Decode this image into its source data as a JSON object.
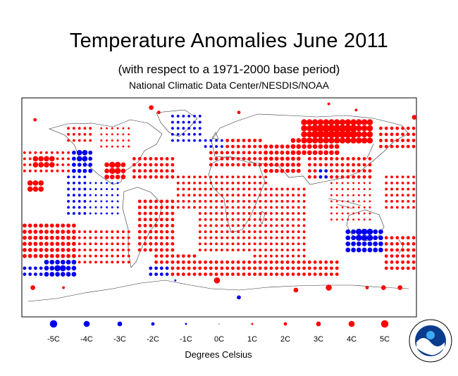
{
  "chart_data": {
    "type": "scatter",
    "title": "Temperature Anomalies June 2011",
    "subtitle": "(with respect to a 1971-2000 base period)",
    "source": "National Climatic Data Center/NESDIS/NOAA",
    "xlabel": "Degrees Celsius",
    "grid_step_degrees": 5,
    "value_range": [
      -5,
      5
    ],
    "positive_color": "#ff0000",
    "negative_color": "#0000ee",
    "legend": {
      "values": [
        -5,
        -4,
        -3,
        -2,
        -1,
        0,
        1,
        2,
        3,
        4,
        5
      ],
      "labels": [
        "-5C",
        "-4C",
        "-3C",
        "-2C",
        "-1C",
        "0C",
        "1C",
        "2C",
        "3C",
        "4C",
        "5C"
      ]
    },
    "anomaly_regions": [
      {
        "lon": [
          -180,
          -135
        ],
        "lat": [
          30,
          50
        ],
        "value": 1.5
      },
      {
        "lon": [
          -180,
          -130
        ],
        "lat": [
          -40,
          -10
        ],
        "value": 2.5
      },
      {
        "lon": [
          -175,
          -160
        ],
        "lat": [
          15,
          25
        ],
        "value": 3.5
      },
      {
        "lon": [
          -170,
          -150
        ],
        "lat": [
          35,
          45
        ],
        "value": 3.5
      },
      {
        "lon": [
          -180,
          -150
        ],
        "lat": [
          -55,
          -45
        ],
        "value": -2
      },
      {
        "lon": [
          -160,
          -130
        ],
        "lat": [
          -55,
          -42
        ],
        "value": -3
      },
      {
        "lon": [
          -152,
          -142
        ],
        "lat": [
          -52,
          -45
        ],
        "value": -4
      },
      {
        "lon": [
          -130,
          -80
        ],
        "lat": [
          -45,
          -15
        ],
        "value": 1.5
      },
      {
        "lon": [
          -140,
          -120
        ],
        "lat": [
          -5,
          30
        ],
        "value": -1.5
      },
      {
        "lon": [
          -135,
          -115
        ],
        "lat": [
          30,
          50
        ],
        "value": -2.5
      },
      {
        "lon": [
          -128,
          -122
        ],
        "lat": [
          38,
          46
        ],
        "value": -3.5
      },
      {
        "lon": [
          -120,
          -90
        ],
        "lat": [
          -5,
          25
        ],
        "value": -1
      },
      {
        "lon": [
          -140,
          -115
        ],
        "lat": [
          55,
          70
        ],
        "value": 1.5
      },
      {
        "lon": [
          -110,
          -80
        ],
        "lat": [
          48,
          70
        ],
        "value": 1
      },
      {
        "lon": [
          -105,
          -85
        ],
        "lat": [
          25,
          40
        ],
        "value": 3
      },
      {
        "lon": [
          -100,
          -90
        ],
        "lat": [
          28,
          36
        ],
        "value": 4
      },
      {
        "lon": [
          -80,
          -40
        ],
        "lat": [
          25,
          45
        ],
        "value": 2
      },
      {
        "lon": [
          -75,
          -40
        ],
        "lat": [
          -35,
          10
        ],
        "value": 2
      },
      {
        "lon": [
          -60,
          -20
        ],
        "lat": [
          -55,
          -35
        ],
        "value": 2
      },
      {
        "lon": [
          -65,
          -45
        ],
        "lat": [
          -55,
          -45
        ],
        "value": -2
      },
      {
        "lon": [
          -40,
          0
        ],
        "lat": [
          0,
          30
        ],
        "value": 1.5
      },
      {
        "lon": [
          -45,
          -15
        ],
        "lat": [
          55,
          78
        ],
        "value": -1.5
      },
      {
        "lon": [
          -10,
          40
        ],
        "lat": [
          35,
          60
        ],
        "value": 2
      },
      {
        "lon": [
          -15,
          5
        ],
        "lat": [
          48,
          60
        ],
        "value": -1.5
      },
      {
        "lon": [
          -20,
          45
        ],
        "lat": [
          -35,
          30
        ],
        "value": 1.5
      },
      {
        "lon": [
          30,
          80
        ],
        "lat": [
          -40,
          20
        ],
        "value": 1.5
      },
      {
        "lon": [
          40,
          75
        ],
        "lat": [
          30,
          55
        ],
        "value": 2.5
      },
      {
        "lon": [
          65,
          110
        ],
        "lat": [
          45,
          60
        ],
        "value": 3
      },
      {
        "lon": [
          75,
          140
        ],
        "lat": [
          55,
          72
        ],
        "value": 4
      },
      {
        "lon": [
          85,
          125
        ],
        "lat": [
          60,
          68
        ],
        "value": 5
      },
      {
        "lon": [
          80,
          140
        ],
        "lat": [
          25,
          45
        ],
        "value": 2
      },
      {
        "lon": [
          90,
          100
        ],
        "lat": [
          25,
          35
        ],
        "value": -2
      },
      {
        "lon": [
          100,
          140
        ],
        "lat": [
          -10,
          25
        ],
        "value": 1
      },
      {
        "lon": [
          145,
          180
        ],
        "lat": [
          50,
          70
        ],
        "value": 2
      },
      {
        "lon": [
          150,
          180
        ],
        "lat": [
          0,
          30
        ],
        "value": 1.5
      },
      {
        "lon": [
          115,
          150
        ],
        "lat": [
          -38,
          -15
        ],
        "value": -3
      },
      {
        "lon": [
          125,
          140
        ],
        "lat": [
          -28,
          -18
        ],
        "value": -4
      },
      {
        "lon": [
          150,
          180
        ],
        "lat": [
          -50,
          -20
        ],
        "value": 2
      },
      {
        "lon": [
          -30,
          110
        ],
        "lat": [
          -55,
          -40
        ],
        "value": 2
      }
    ],
    "antarctic_stations": [
      {
        "lon": -40,
        "lat": -60,
        "value": -1
      },
      {
        "lon": -2,
        "lat": -60,
        "value": 4
      },
      {
        "lon": 18,
        "lat": -74,
        "value": -2.5
      },
      {
        "lon": 70,
        "lat": -68,
        "value": 3
      },
      {
        "lon": 100,
        "lat": -66,
        "value": 4
      },
      {
        "lon": 135,
        "lat": -66,
        "value": 2
      },
      {
        "lon": 150,
        "lat": -66,
        "value": 3
      },
      {
        "lon": 165,
        "lat": -66,
        "value": 3
      },
      {
        "lon": 190,
        "lat": -66,
        "value": 3
      },
      {
        "lon": 218,
        "lat": -66,
        "value": 1.5
      }
    ],
    "arctic_stations": [
      {
        "lon": -62,
        "lat": 82,
        "value": 3
      },
      {
        "lon": -55,
        "lat": 78,
        "value": 2
      },
      {
        "lon": 18,
        "lat": 78,
        "value": 2
      },
      {
        "lon": 100,
        "lat": 85,
        "value": 1.5
      },
      {
        "lon": 125,
        "lat": 80,
        "value": 1.5
      },
      {
        "lon": 178,
        "lat": 74,
        "value": 3
      },
      {
        "lon": -168,
        "lat": 72,
        "value": 2
      }
    ]
  }
}
